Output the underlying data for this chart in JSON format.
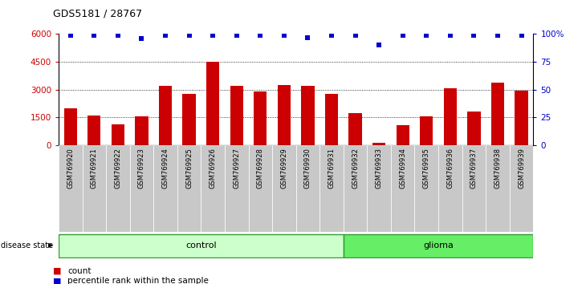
{
  "title": "GDS5181 / 28767",
  "samples": [
    "GSM769920",
    "GSM769921",
    "GSM769922",
    "GSM769923",
    "GSM769924",
    "GSM769925",
    "GSM769926",
    "GSM769927",
    "GSM769928",
    "GSM769929",
    "GSM769930",
    "GSM769931",
    "GSM769932",
    "GSM769933",
    "GSM769934",
    "GSM769935",
    "GSM769936",
    "GSM769937",
    "GSM769938",
    "GSM769939"
  ],
  "counts": [
    2000,
    1600,
    1100,
    1550,
    3200,
    2750,
    4500,
    3200,
    2900,
    3250,
    3200,
    2750,
    1700,
    100,
    1050,
    1550,
    3050,
    1800,
    3350,
    2950
  ],
  "percentile_ranks": [
    99,
    99,
    99,
    96,
    99,
    99,
    99,
    99,
    99,
    99,
    97,
    99,
    99,
    90,
    99,
    99,
    99,
    99,
    99,
    99
  ],
  "control_count": 12,
  "glioma_count": 8,
  "bar_color": "#cc0000",
  "dot_color": "#0000cc",
  "ylim_left": [
    0,
    6000
  ],
  "ylim_right": [
    0,
    100
  ],
  "yticks_left": [
    0,
    1500,
    3000,
    4500,
    6000
  ],
  "yticks_right": [
    0,
    25,
    50,
    75,
    100
  ],
  "yticklabels_left": [
    "0",
    "1500",
    "3000",
    "4500",
    "6000"
  ],
  "yticklabels_right": [
    "0",
    "25",
    "50",
    "75",
    "100%"
  ],
  "grid_values": [
    1500,
    3000,
    4500
  ],
  "control_label": "control",
  "glioma_label": "glioma",
  "disease_state_label": "disease state",
  "legend_count_label": "count",
  "legend_percentile_label": "percentile rank within the sample",
  "control_color": "#ccffcc",
  "glioma_color": "#66ee66",
  "tick_bg_color": "#c8c8c8",
  "bar_width": 0.55
}
